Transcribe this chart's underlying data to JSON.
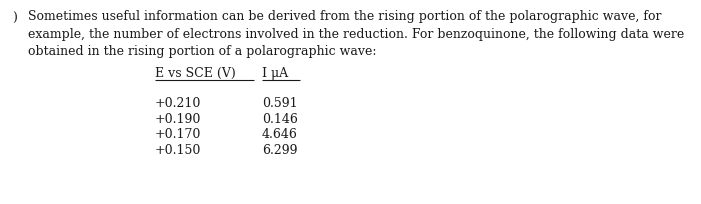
{
  "bg_color": "#ffffff",
  "text_color": "#1a1a1a",
  "line1": "Sometimes useful information can be derived from the rising portion of the polarographic wave, for",
  "line2": "example, the number of electrons involved in the reduction. For benzoquinone, the following data were",
  "line3": "obtained in the rising portion of a polarographic wave:",
  "col1_header": "E vs SCE (V)",
  "col2_header": "I μA",
  "col1_data": [
    "+0.210",
    "+0.190",
    "+0.170",
    "+0.150"
  ],
  "col2_data": [
    "0.591",
    "0.146",
    "4.646",
    "6.299"
  ],
  "prefix": ")",
  "font_size": 9.0,
  "fig_width": 7.01,
  "fig_height": 2.05,
  "dpi": 100
}
